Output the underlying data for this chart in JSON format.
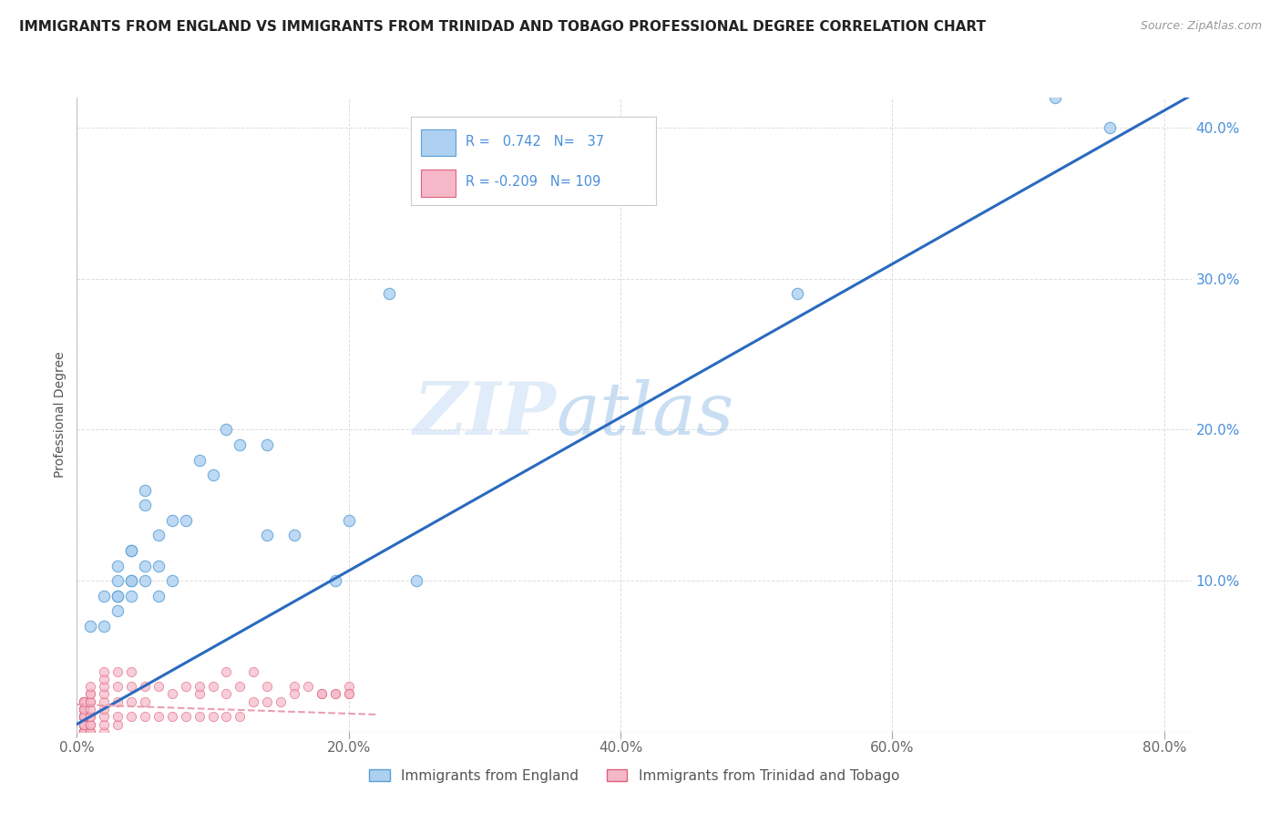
{
  "title": "IMMIGRANTS FROM ENGLAND VS IMMIGRANTS FROM TRINIDAD AND TOBAGO PROFESSIONAL DEGREE CORRELATION CHART",
  "source": "Source: ZipAtlas.com",
  "ylabel": "Professional Degree",
  "legend_labels": [
    "Immigrants from England",
    "Immigrants from Trinidad and Tobago"
  ],
  "england_color": "#add0f0",
  "england_edge_color": "#5a9fd4",
  "tt_color": "#f5b8c8",
  "tt_edge_color": "#e0607a",
  "england_R": "0.742",
  "england_N": "37",
  "tt_R": "-0.209",
  "tt_N": "109",
  "regression_england_color": "#2a6abf",
  "regression_tt_color": "#e8a0b0",
  "watermark_zip": "ZIP",
  "watermark_atlas": "atlas",
  "xlim": [
    0.0,
    0.82
  ],
  "ylim": [
    0.0,
    0.42
  ],
  "xticks": [
    0.0,
    0.2,
    0.4,
    0.6,
    0.8
  ],
  "xtick_labels": [
    "0.0%",
    "20.0%",
    "40.0%",
    "60.0%",
    "80.0%"
  ],
  "yticks": [
    0.0,
    0.1,
    0.2,
    0.3,
    0.4
  ],
  "ytick_labels_right": [
    "",
    "10.0%",
    "20.0%",
    "30.0%",
    "40.0%"
  ],
  "england_scatter_x": [
    0.01,
    0.02,
    0.02,
    0.03,
    0.03,
    0.03,
    0.03,
    0.03,
    0.04,
    0.04,
    0.04,
    0.04,
    0.04,
    0.05,
    0.05,
    0.05,
    0.05,
    0.06,
    0.06,
    0.06,
    0.07,
    0.07,
    0.08,
    0.09,
    0.1,
    0.11,
    0.12,
    0.14,
    0.14,
    0.16,
    0.19,
    0.2,
    0.23,
    0.25,
    0.53,
    0.72,
    0.76
  ],
  "england_scatter_y": [
    0.07,
    0.07,
    0.09,
    0.08,
    0.09,
    0.09,
    0.1,
    0.11,
    0.09,
    0.1,
    0.1,
    0.12,
    0.12,
    0.1,
    0.11,
    0.15,
    0.16,
    0.09,
    0.11,
    0.13,
    0.1,
    0.14,
    0.14,
    0.18,
    0.17,
    0.2,
    0.19,
    0.19,
    0.13,
    0.13,
    0.1,
    0.14,
    0.29,
    0.1,
    0.29,
    0.42,
    0.4
  ],
  "tt_scatter_x": [
    0.005,
    0.005,
    0.005,
    0.005,
    0.005,
    0.005,
    0.005,
    0.005,
    0.005,
    0.005,
    0.005,
    0.005,
    0.005,
    0.005,
    0.005,
    0.005,
    0.005,
    0.005,
    0.005,
    0.005,
    0.005,
    0.005,
    0.005,
    0.005,
    0.005,
    0.005,
    0.005,
    0.005,
    0.005,
    0.005,
    0.005,
    0.005,
    0.005,
    0.005,
    0.005,
    0.005,
    0.005,
    0.005,
    0.005,
    0.005,
    0.005,
    0.005,
    0.005,
    0.005,
    0.005,
    0.01,
    0.01,
    0.01,
    0.01,
    0.01,
    0.01,
    0.01,
    0.01,
    0.01,
    0.01,
    0.01,
    0.01,
    0.02,
    0.02,
    0.02,
    0.02,
    0.02,
    0.02,
    0.02,
    0.02,
    0.02,
    0.03,
    0.03,
    0.03,
    0.03,
    0.03,
    0.04,
    0.04,
    0.04,
    0.04,
    0.05,
    0.05,
    0.05,
    0.06,
    0.06,
    0.07,
    0.07,
    0.08,
    0.08,
    0.09,
    0.09,
    0.09,
    0.1,
    0.1,
    0.11,
    0.11,
    0.11,
    0.12,
    0.12,
    0.13,
    0.13,
    0.14,
    0.14,
    0.15,
    0.16,
    0.16,
    0.17,
    0.18,
    0.18,
    0.19,
    0.19,
    0.2,
    0.2,
    0.2
  ],
  "tt_scatter_y": [
    0.0,
    0.0,
    0.0,
    0.0,
    0.0,
    0.0,
    0.0,
    0.0,
    0.0,
    0.0,
    0.0,
    0.0,
    0.0,
    0.005,
    0.005,
    0.005,
    0.005,
    0.005,
    0.01,
    0.01,
    0.01,
    0.01,
    0.01,
    0.01,
    0.01,
    0.01,
    0.01,
    0.015,
    0.015,
    0.015,
    0.02,
    0.02,
    0.02,
    0.02,
    0.02,
    0.0,
    0.0,
    0.0,
    0.0,
    0.005,
    0.005,
    0.01,
    0.01,
    0.015,
    0.02,
    0.0,
    0.0,
    0.005,
    0.005,
    0.01,
    0.01,
    0.015,
    0.02,
    0.02,
    0.025,
    0.025,
    0.03,
    0.0,
    0.005,
    0.01,
    0.015,
    0.02,
    0.025,
    0.03,
    0.035,
    0.04,
    0.005,
    0.01,
    0.02,
    0.03,
    0.04,
    0.01,
    0.02,
    0.03,
    0.04,
    0.01,
    0.02,
    0.03,
    0.01,
    0.03,
    0.01,
    0.025,
    0.01,
    0.03,
    0.01,
    0.025,
    0.03,
    0.01,
    0.03,
    0.01,
    0.025,
    0.04,
    0.01,
    0.03,
    0.02,
    0.04,
    0.02,
    0.03,
    0.02,
    0.03,
    0.025,
    0.03,
    0.025,
    0.025,
    0.025,
    0.025,
    0.03,
    0.025,
    0.025
  ],
  "background_color": "#ffffff",
  "grid_color": "#dddddd",
  "title_fontsize": 11,
  "source_fontsize": 9,
  "tick_fontsize": 11,
  "ylabel_fontsize": 10
}
